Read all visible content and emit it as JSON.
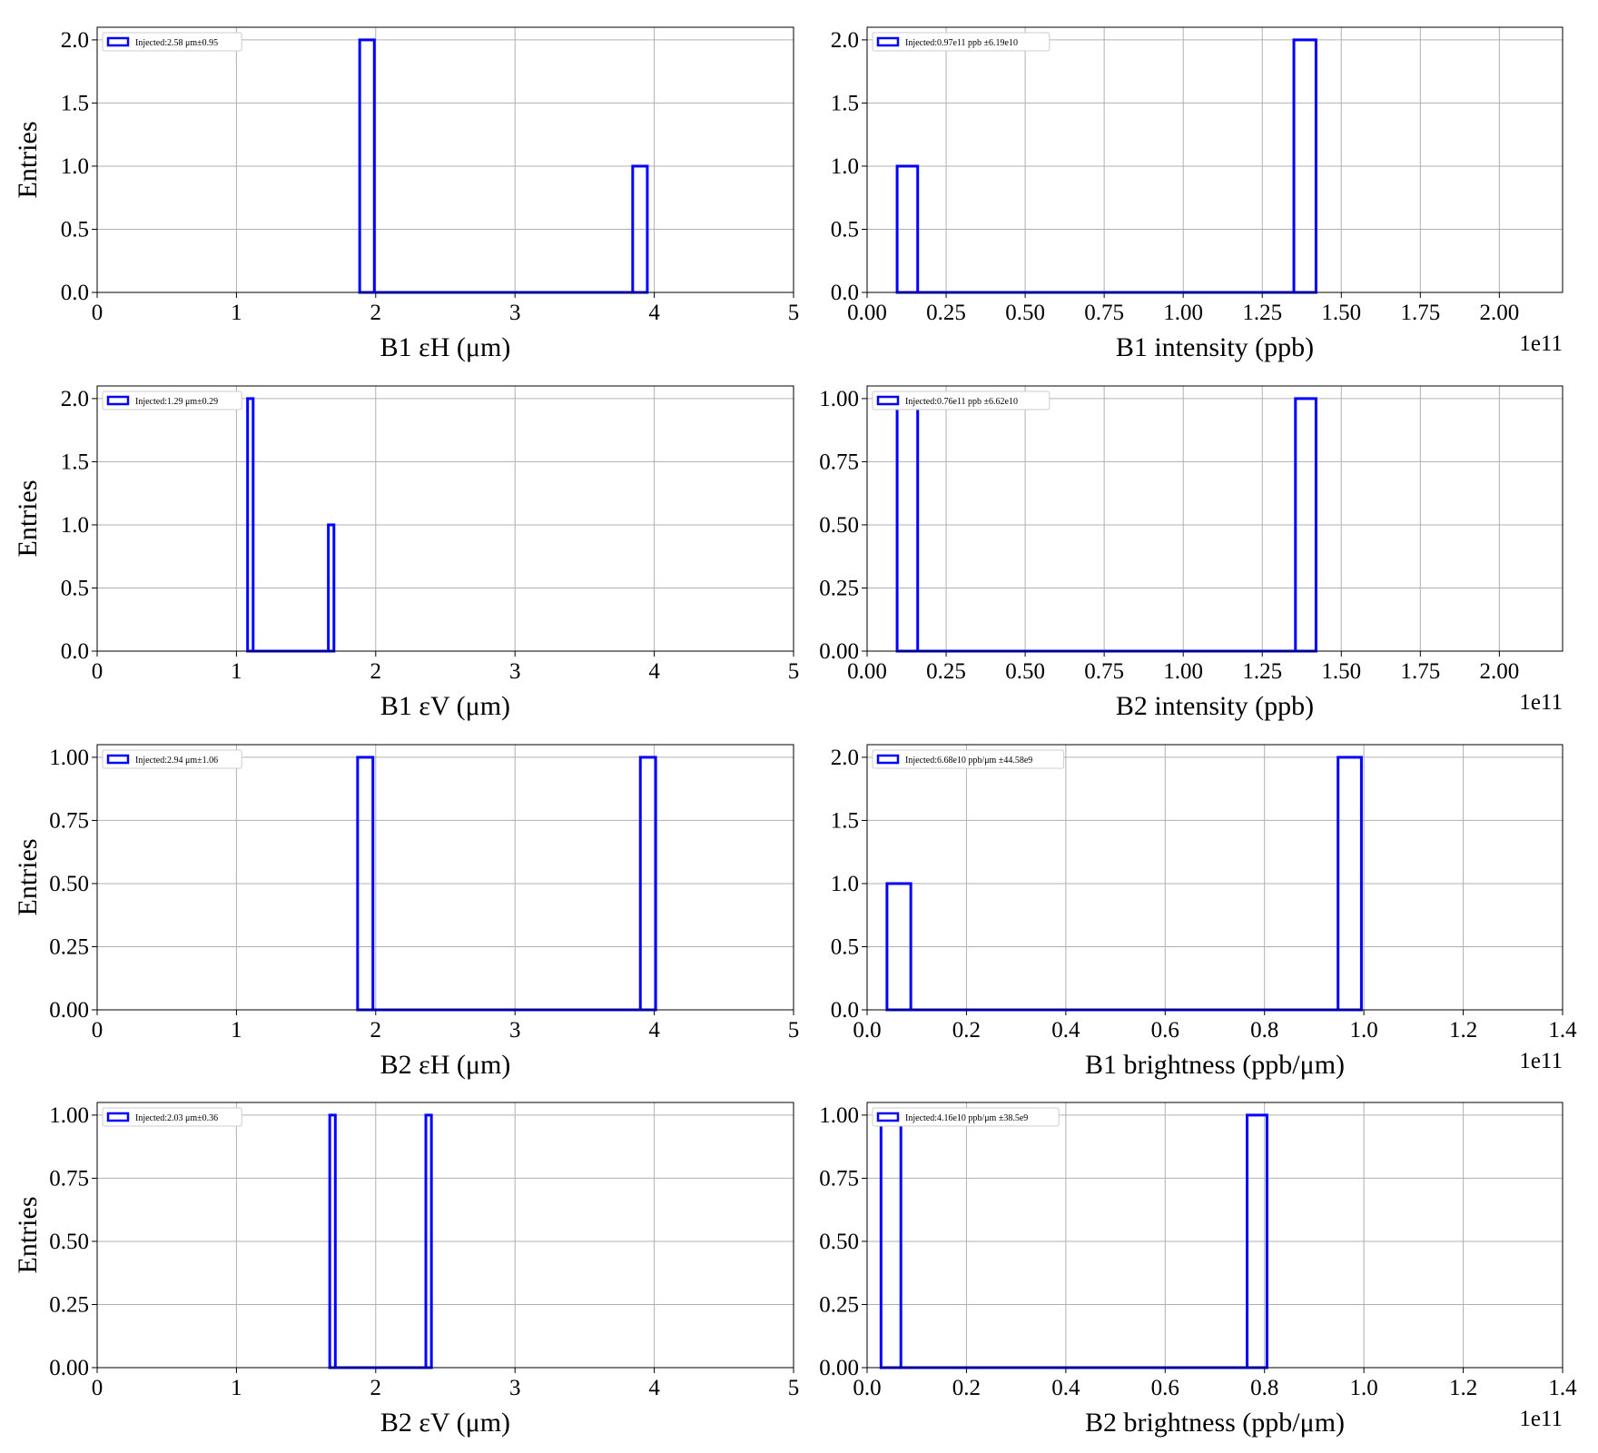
{
  "chart_data": [
    {
      "type": "histogram",
      "xlabel": "B1 εH (μm)",
      "ylabel": "Entries",
      "xlim": [
        0,
        5
      ],
      "ylim": [
        0,
        2.1
      ],
      "xticks": [
        0,
        1,
        2,
        3,
        4,
        5
      ],
      "yticks": [
        {
          "value": 0,
          "label": "0.0"
        },
        0.5,
        {
          "value": 1,
          "label": "1.0"
        },
        1.5,
        {
          "value": 2,
          "label": "2.0"
        }
      ],
      "grid": true,
      "legend": "upper left",
      "series": [
        {
          "name": "Injected:2.58 μm±0.95",
          "color": "#0000ff",
          "bins": [
            1.885,
            1.99,
            3.845,
            3.95
          ],
          "values": [
            2,
            0,
            1
          ]
        }
      ]
    },
    {
      "type": "histogram",
      "xlabel": "B1 intensity (ppb)",
      "offset_text": "1e11",
      "xlim": [
        0,
        2.2
      ],
      "ylim": [
        0,
        2.1
      ],
      "xticks": [
        {
          "value": 0,
          "label": "0.00"
        },
        0.25,
        {
          "value": 0.5,
          "label": "0.50"
        },
        0.75,
        {
          "value": 1,
          "label": "1.00"
        },
        1.25,
        {
          "value": 1.5,
          "label": "1.50"
        },
        1.75,
        {
          "value": 2,
          "label": "2.00"
        }
      ],
      "yticks": [
        {
          "value": 0,
          "label": "0.0"
        },
        0.5,
        {
          "value": 1,
          "label": "1.0"
        },
        1.5,
        {
          "value": 2,
          "label": "2.0"
        }
      ],
      "grid": true,
      "legend": "upper left",
      "series": [
        {
          "name": "Injected:0.97e11 ppb ±6.19e10",
          "color": "#0000ff",
          "bins": [
            0.095,
            0.16,
            1.35,
            1.42
          ],
          "values": [
            1,
            0,
            2
          ]
        }
      ]
    },
    {
      "type": "histogram",
      "xlabel": "B1 εV (μm)",
      "ylabel": "Entries",
      "xlim": [
        0,
        5
      ],
      "ylim": [
        0,
        2.1
      ],
      "xticks": [
        0,
        1,
        2,
        3,
        4,
        5
      ],
      "yticks": [
        {
          "value": 0,
          "label": "0.0"
        },
        0.5,
        {
          "value": 1,
          "label": "1.0"
        },
        1.5,
        {
          "value": 2,
          "label": "2.0"
        }
      ],
      "grid": true,
      "legend": "upper left",
      "series": [
        {
          "name": "Injected:1.29 μm±0.29",
          "color": "#0000ff",
          "bins": [
            1.08,
            1.12,
            1.66,
            1.7
          ],
          "values": [
            2,
            0,
            1
          ]
        }
      ]
    },
    {
      "type": "histogram",
      "xlabel": "B2 intensity (ppb)",
      "offset_text": "1e11",
      "xlim": [
        0,
        2.2
      ],
      "ylim": [
        0,
        1.05
      ],
      "xticks": [
        {
          "value": 0,
          "label": "0.00"
        },
        0.25,
        {
          "value": 0.5,
          "label": "0.50"
        },
        0.75,
        {
          "value": 1,
          "label": "1.00"
        },
        1.25,
        {
          "value": 1.5,
          "label": "1.50"
        },
        1.75,
        {
          "value": 2,
          "label": "2.00"
        }
      ],
      "yticks": [
        {
          "value": 0,
          "label": "0.00"
        },
        0.25,
        {
          "value": 0.5,
          "label": "0.50"
        },
        0.75,
        {
          "value": 1,
          "label": "1.00"
        }
      ],
      "grid": true,
      "legend": "upper left",
      "series": [
        {
          "name": "Injected:0.76e11 ppb ±6.62e10",
          "color": "#0000ff",
          "bins": [
            0.095,
            0.16,
            1.355,
            1.42
          ],
          "values": [
            1,
            0,
            1
          ]
        }
      ]
    },
    {
      "type": "histogram",
      "xlabel": "B2 εH (μm)",
      "ylabel": "Entries",
      "xlim": [
        0,
        5
      ],
      "ylim": [
        0,
        1.05
      ],
      "xticks": [
        0,
        1,
        2,
        3,
        4,
        5
      ],
      "yticks": [
        {
          "value": 0,
          "label": "0.00"
        },
        0.25,
        {
          "value": 0.5,
          "label": "0.50"
        },
        0.75,
        {
          "value": 1,
          "label": "1.00"
        }
      ],
      "grid": true,
      "legend": "upper left",
      "series": [
        {
          "name": "Injected:2.94 μm±1.06",
          "color": "#0000ff",
          "bins": [
            1.87,
            1.98,
            3.9,
            4.01
          ],
          "values": [
            1,
            0,
            1
          ]
        }
      ]
    },
    {
      "type": "histogram",
      "xlabel": "B1 brightness (ppb/μm)",
      "offset_text": "1e11",
      "xlim": [
        0,
        1.4
      ],
      "ylim": [
        0,
        2.1
      ],
      "xticks": [
        {
          "value": 0,
          "label": "0.0"
        },
        0.2,
        0.4,
        0.6,
        0.8,
        {
          "value": 1,
          "label": "1.0"
        },
        1.2,
        1.4
      ],
      "yticks": [
        {
          "value": 0,
          "label": "0.0"
        },
        0.5,
        {
          "value": 1,
          "label": "1.0"
        },
        1.5,
        {
          "value": 2,
          "label": "2.0"
        }
      ],
      "grid": true,
      "legend": "upper left",
      "series": [
        {
          "name": "Injected:6.68e10 ppb/μm ±44.58e9",
          "color": "#0000ff",
          "bins": [
            0.04,
            0.088,
            0.948,
            0.995
          ],
          "values": [
            1,
            0,
            2
          ]
        }
      ]
    },
    {
      "type": "histogram",
      "xlabel": "B2 εV (μm)",
      "ylabel": "Entries",
      "xlim": [
        0,
        5
      ],
      "ylim": [
        0,
        1.05
      ],
      "xticks": [
        0,
        1,
        2,
        3,
        4,
        5
      ],
      "yticks": [
        {
          "value": 0,
          "label": "0.00"
        },
        0.25,
        {
          "value": 0.5,
          "label": "0.50"
        },
        0.75,
        {
          "value": 1,
          "label": "1.00"
        }
      ],
      "grid": true,
      "legend": "upper left",
      "series": [
        {
          "name": "Injected:2.03 μm±0.36",
          "color": "#0000ff",
          "bins": [
            1.67,
            1.71,
            2.36,
            2.4
          ],
          "values": [
            1,
            0,
            1
          ]
        }
      ]
    },
    {
      "type": "histogram",
      "xlabel": "B2 brightness (ppb/μm)",
      "offset_text": "1e11",
      "xlim": [
        0,
        1.4
      ],
      "ylim": [
        0,
        1.05
      ],
      "xticks": [
        {
          "value": 0,
          "label": "0.0"
        },
        0.2,
        0.4,
        0.6,
        0.8,
        {
          "value": 1,
          "label": "1.0"
        },
        1.2,
        1.4
      ],
      "yticks": [
        {
          "value": 0,
          "label": "0.00"
        },
        0.25,
        {
          "value": 0.5,
          "label": "0.50"
        },
        0.75,
        {
          "value": 1,
          "label": "1.00"
        }
      ],
      "grid": true,
      "legend": "upper left",
      "series": [
        {
          "name": "Injected:4.16e10 ppb/μm ±38.5e9",
          "color": "#0000ff",
          "bins": [
            0.028,
            0.068,
            0.765,
            0.805
          ],
          "values": [
            1,
            0,
            1
          ]
        }
      ]
    }
  ]
}
